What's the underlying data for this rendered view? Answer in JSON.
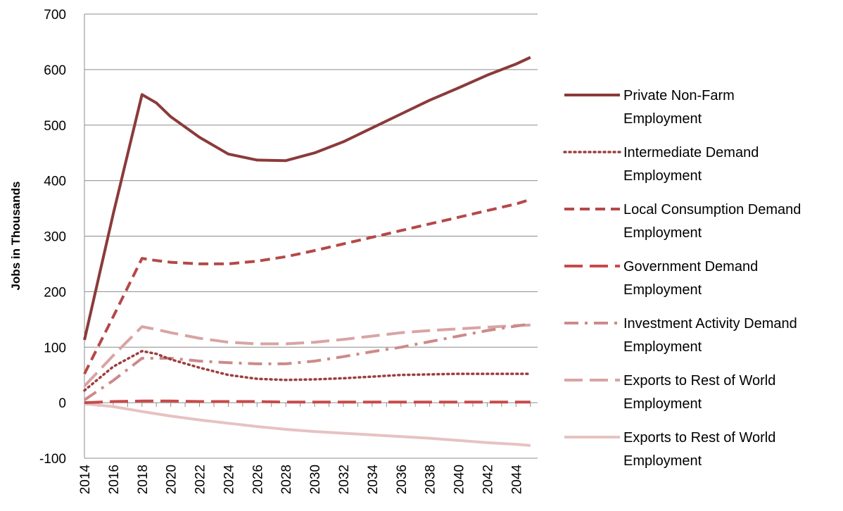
{
  "chart_data": {
    "type": "line",
    "title": "",
    "xlabel": "",
    "ylabel": "Jobs in Thousands",
    "ylim": [
      -100,
      700
    ],
    "yticks": [
      -100,
      0,
      100,
      200,
      300,
      400,
      500,
      600,
      700
    ],
    "xticks": [
      "2014",
      "2016",
      "2018",
      "2020",
      "2022",
      "2024",
      "2026",
      "2028",
      "2030",
      "2032",
      "2034",
      "2036",
      "2038",
      "2040",
      "2042",
      "2044"
    ],
    "grid": "horizontal",
    "legend_position": "right",
    "x": [
      2014,
      2016,
      2018,
      2019,
      2020,
      2022,
      2024,
      2026,
      2028,
      2030,
      2032,
      2034,
      2036,
      2038,
      2040,
      2042,
      2044,
      2045
    ],
    "series": [
      {
        "name": "Private Non-Farm",
        "name2": "Employment",
        "style": "solid",
        "color": "#8B3A3A",
        "values": [
          113,
          340,
          555,
          540,
          515,
          478,
          448,
          437,
          436,
          450,
          470,
          495,
          520,
          545,
          567,
          590,
          610,
          622
        ]
      },
      {
        "name": "Intermediate Demand",
        "name2": "Employment",
        "style": "dotted",
        "color": "#9E3D3D",
        "values": [
          22,
          65,
          93,
          88,
          78,
          63,
          50,
          43,
          41,
          42,
          44,
          47,
          50,
          51,
          52,
          52,
          52,
          52
        ]
      },
      {
        "name": "Local Consumption Demand",
        "name2": "Employment",
        "style": "dashed",
        "color": "#B54848",
        "values": [
          52,
          155,
          260,
          256,
          253,
          250,
          250,
          255,
          263,
          274,
          286,
          298,
          310,
          322,
          334,
          346,
          358,
          366
        ]
      },
      {
        "name": "Government Demand",
        "name2": "Employment",
        "style": "longdash",
        "color": "#C84A4A",
        "values": [
          0,
          2,
          3,
          3,
          3,
          2,
          2,
          2,
          1,
          1,
          1,
          1,
          1,
          1,
          1,
          1,
          1,
          1
        ]
      },
      {
        "name": "Investment Activity Demand",
        "name2": "Employment",
        "style": "dashdot",
        "color": "#CC8A8A",
        "values": [
          5,
          40,
          80,
          80,
          80,
          75,
          72,
          70,
          70,
          75,
          83,
          92,
          100,
          110,
          120,
          130,
          138,
          142
        ]
      },
      {
        "name": "Exports to Rest of World",
        "name2": "Employment",
        "style": "longdash",
        "color": "#D9A4A4",
        "values": [
          30,
          85,
          137,
          132,
          126,
          116,
          109,
          106,
          106,
          109,
          114,
          120,
          126,
          130,
          133,
          136,
          139,
          140
        ]
      },
      {
        "name": "Exports to Rest of World",
        "name2": "Employment",
        "style": "solid",
        "color": "#E7C2C2",
        "values": [
          -2,
          -7,
          -16,
          -20,
          -24,
          -31,
          -37,
          -43,
          -48,
          -52,
          -55,
          -58,
          -61,
          -64,
          -68,
          -72,
          -75,
          -77
        ]
      }
    ]
  }
}
